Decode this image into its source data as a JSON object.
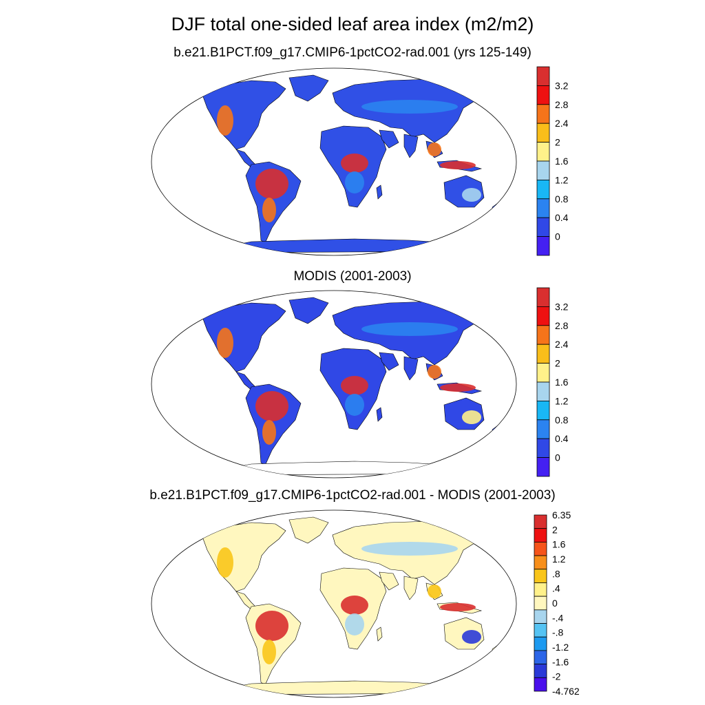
{
  "title": "DJF total one-sided leaf area index (m2/m2)",
  "panels": [
    {
      "id": "model",
      "title": "b.e21.B1PCT.f09_g17.CMIP6-1pctCO2-rad.001 (yrs 125-149)",
      "colorbar": {
        "labels": [
          "3.2",
          "2.8",
          "2.4",
          "2",
          "1.6",
          "1.2",
          "0.8",
          "0.4",
          "0"
        ],
        "colors": [
          "#d92f2f",
          "#ee1111",
          "#f6741a",
          "#f9be1a",
          "#fff18a",
          "#a8d5ee",
          "#19b7f5",
          "#2b83f0",
          "#3048e6",
          "#4420f2"
        ]
      }
    },
    {
      "id": "obs",
      "title": "MODIS (2001-2003)",
      "colorbar": {
        "labels": [
          "3.2",
          "2.8",
          "2.4",
          "2",
          "1.6",
          "1.2",
          "0.8",
          "0.4",
          "0"
        ],
        "colors": [
          "#d92f2f",
          "#ee1111",
          "#f6741a",
          "#f9be1a",
          "#fff18a",
          "#a8d5ee",
          "#19b7f5",
          "#2b83f0",
          "#3048e6",
          "#4420f2"
        ]
      }
    },
    {
      "id": "diff",
      "title": "b.e21.B1PCT.f09_g17.CMIP6-1pctCO2-rad.001 - MODIS (2001-2003)",
      "colorbar": {
        "labels": [
          "6.35",
          "2",
          "1.6",
          "1.2",
          ".8",
          ".4",
          "0",
          "-.4",
          "-.8",
          "-1.2",
          "-1.6",
          "-2",
          "-4.762"
        ],
        "colors": [
          "#d92f2f",
          "#ee1111",
          "#f6541a",
          "#f88f1a",
          "#f9c51a",
          "#fff18a",
          "#fff7bf",
          "#a8d5ee",
          "#55c3f3",
          "#1d9af0",
          "#2c66e8",
          "#2b3ad8",
          "#4a10ec"
        ]
      }
    }
  ]
}
